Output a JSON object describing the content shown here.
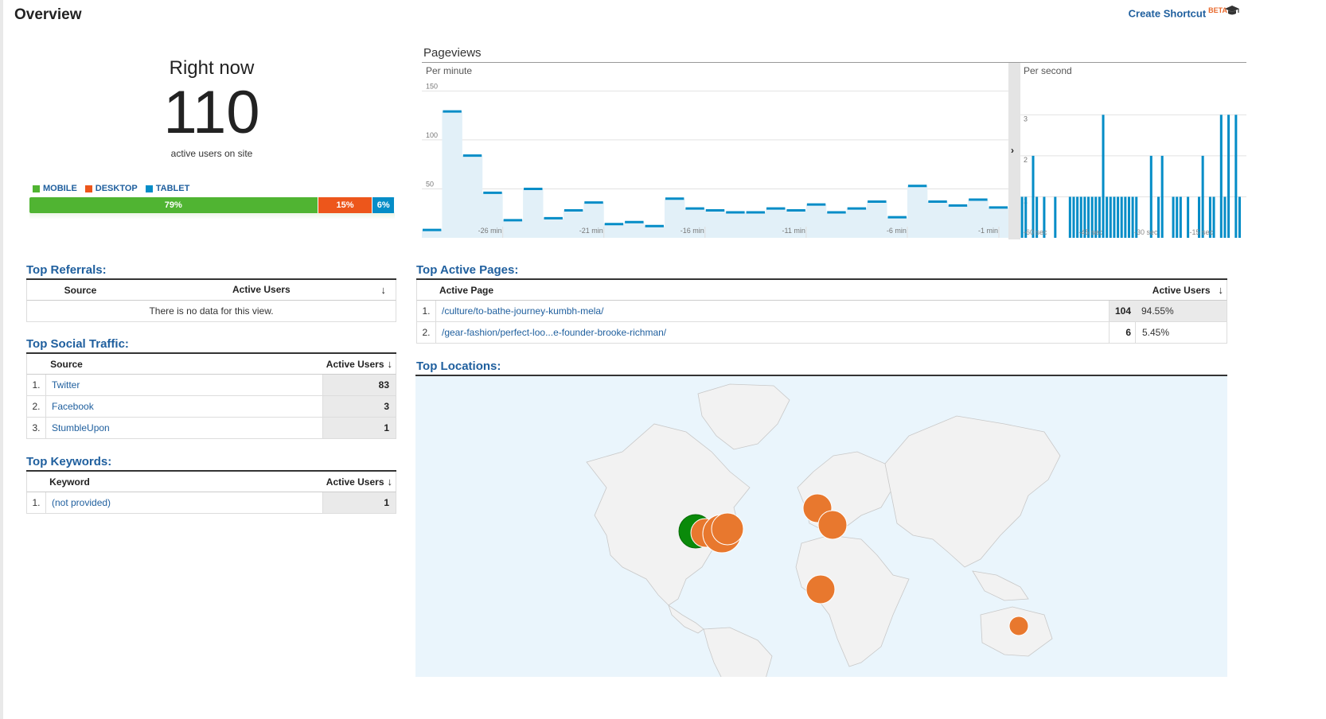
{
  "header": {
    "title": "Overview",
    "shortcut_label": "Create Shortcut",
    "shortcut_badge": "BETA",
    "shortcut_icon": "graduation-cap-icon"
  },
  "right_now": {
    "label": "Right now",
    "count": "110",
    "subtitle": "active users on site"
  },
  "devices": {
    "legend": [
      {
        "label": "MOBILE",
        "color": "#50b432"
      },
      {
        "label": "DESKTOP",
        "color": "#ed561b"
      },
      {
        "label": "TABLET",
        "color": "#058dc7"
      }
    ],
    "segments": [
      {
        "label": "79%",
        "percent": 79,
        "color": "#50b432"
      },
      {
        "label": "15%",
        "percent": 15,
        "color": "#ed561b"
      },
      {
        "label": "6%",
        "percent": 6,
        "color": "#058dc7"
      }
    ]
  },
  "pageviews": {
    "title": "Pageviews",
    "per_minute_label": "Per minute",
    "per_second_label": "Per second"
  },
  "chart_data": [
    {
      "type": "area",
      "title": "Per minute",
      "y_ticks": [
        "150",
        "100",
        "50"
      ],
      "ylim": [
        0,
        160
      ],
      "x_tick_labels": [
        "-26 min",
        "-21 min",
        "-16 min",
        "-11 min",
        "-6 min",
        "-1 min"
      ],
      "values": [
        8,
        129,
        84,
        46,
        18,
        50,
        20,
        28,
        36,
        14,
        16,
        12,
        40,
        30,
        28,
        26,
        26,
        30,
        28,
        34,
        26,
        30,
        37,
        21,
        53,
        37,
        33,
        39,
        31
      ],
      "color": "#058dc7"
    },
    {
      "type": "bar",
      "title": "Per second",
      "y_ticks": [
        "3",
        "2",
        "1"
      ],
      "ylim": [
        0,
        3.2
      ],
      "x_tick_labels": [
        "-60 sec",
        "-45 sec",
        "-30 sec",
        "-15 sec"
      ],
      "values": [
        1,
        1,
        0,
        2,
        1,
        0,
        1,
        0,
        0,
        1,
        0,
        0,
        0,
        1,
        1,
        1,
        1,
        1,
        1,
        1,
        1,
        1,
        3,
        1,
        1,
        1,
        1,
        1,
        1,
        1,
        1,
        1,
        0,
        0,
        0,
        2,
        0,
        1,
        2,
        0,
        0,
        1,
        1,
        1,
        0,
        1,
        0,
        0,
        1,
        2,
        0,
        1,
        1,
        0,
        3,
        1,
        3,
        0,
        3,
        1
      ],
      "color": "#058dc7"
    }
  ],
  "top_referrals": {
    "title": "Top Referrals:",
    "col_source": "Source",
    "col_users": "Active Users",
    "empty": "There is no data for this view."
  },
  "top_social": {
    "title": "Top Social Traffic:",
    "col_source": "Source",
    "col_users": "Active Users",
    "rows": [
      {
        "n": "1.",
        "name": "Twitter",
        "value": "83"
      },
      {
        "n": "2.",
        "name": "Facebook",
        "value": "3"
      },
      {
        "n": "3.",
        "name": "StumbleUpon",
        "value": "1"
      }
    ]
  },
  "top_keywords": {
    "title": "Top Keywords:",
    "col_keyword": "Keyword",
    "col_users": "Active Users",
    "rows": [
      {
        "n": "1.",
        "name": "(not provided)",
        "value": "1"
      }
    ]
  },
  "top_pages": {
    "title": "Top Active Pages:",
    "col_page": "Active Page",
    "col_users": "Active Users",
    "rows": [
      {
        "n": "1.",
        "name": "/culture/to-bathe-journey-kumbh-mela/",
        "value": "104",
        "pct": "94.55%"
      },
      {
        "n": "2.",
        "name": "/gear-fashion/perfect-loo...e-founder-brooke-richman/",
        "value": "6",
        "pct": "5.45%"
      }
    ]
  },
  "top_locations": {
    "title": "Top Locations:",
    "colors": {
      "ocean": "#eaf5fc",
      "land": "#f2f2f2",
      "primary": "#0a8a0a",
      "secondary": "#e8782e"
    }
  }
}
